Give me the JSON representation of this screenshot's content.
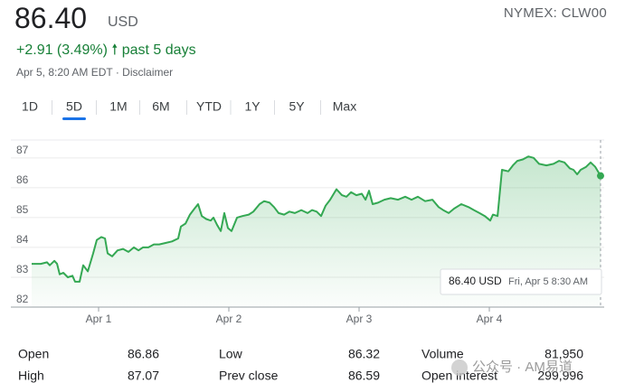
{
  "header": {
    "price": "86.40",
    "currency": "USD",
    "change": "+2.91 (3.49%)",
    "change_arrow": "🠕",
    "period": "past 5 days",
    "timestamp": "Apr 5, 8:20 AM EDT · Disclaimer",
    "symbol": "NYMEX: CLW00"
  },
  "tabs": [
    "1D",
    "5D",
    "1M",
    "6M",
    "YTD",
    "1Y",
    "5Y",
    "Max"
  ],
  "selected_tab": 1,
  "chart_data": {
    "type": "line",
    "x": [
      0.486,
      0.556,
      0.604,
      0.625,
      0.66,
      0.681,
      0.701,
      0.729,
      0.764,
      0.799,
      0.819,
      0.854,
      0.882,
      0.917,
      0.958,
      0.986,
      1.021,
      1.049,
      1.069,
      1.104,
      1.146,
      1.188,
      1.229,
      1.271,
      1.306,
      1.34,
      1.382,
      1.424,
      1.465,
      1.514,
      1.563,
      1.611,
      1.632,
      1.667,
      1.701,
      1.736,
      1.764,
      1.792,
      1.826,
      1.861,
      1.882,
      1.91,
      1.938,
      1.965,
      1.993,
      2.021,
      2.063,
      2.104,
      2.153,
      2.188,
      2.236,
      2.271,
      2.313,
      2.347,
      2.382,
      2.424,
      2.465,
      2.507,
      2.556,
      2.604,
      2.639,
      2.674,
      2.708,
      2.743,
      2.778,
      2.826,
      2.868,
      2.903,
      2.938,
      2.979,
      3.021,
      3.049,
      3.076,
      3.104,
      3.146,
      3.194,
      3.243,
      3.299,
      3.354,
      3.403,
      3.451,
      3.507,
      3.563,
      3.611,
      3.646,
      3.688,
      3.729,
      3.785,
      3.84,
      3.882,
      3.924,
      3.965,
      4.007,
      4.028,
      4.063,
      4.097,
      4.146,
      4.181,
      4.215,
      4.257,
      4.299,
      4.34,
      4.382,
      4.438,
      4.493,
      4.535,
      4.576,
      4.618,
      4.646,
      4.674,
      4.701,
      4.743,
      4.778,
      4.813,
      4.854
    ],
    "series": [
      {
        "color": "#34a853",
        "values": [
          83.45,
          83.45,
          83.5,
          83.4,
          83.55,
          83.45,
          83.1,
          83.15,
          83.0,
          83.05,
          82.85,
          82.85,
          83.4,
          83.2,
          83.8,
          84.25,
          84.35,
          84.3,
          83.8,
          83.7,
          83.9,
          83.95,
          83.85,
          84.0,
          83.9,
          84.0,
          84.0,
          84.1,
          84.1,
          84.15,
          84.2,
          84.3,
          84.7,
          84.8,
          85.1,
          85.3,
          85.45,
          85.05,
          84.95,
          84.9,
          85.0,
          84.75,
          84.55,
          85.15,
          84.65,
          84.55,
          85.0,
          85.05,
          85.1,
          85.2,
          85.45,
          85.55,
          85.5,
          85.35,
          85.15,
          85.1,
          85.2,
          85.15,
          85.25,
          85.15,
          85.25,
          85.2,
          85.05,
          85.4,
          85.6,
          85.95,
          85.75,
          85.7,
          85.85,
          85.75,
          85.8,
          85.6,
          85.9,
          85.45,
          85.5,
          85.6,
          85.65,
          85.6,
          85.7,
          85.6,
          85.7,
          85.55,
          85.6,
          85.35,
          85.25,
          85.15,
          85.3,
          85.45,
          85.35,
          85.25,
          85.15,
          85.05,
          84.9,
          85.1,
          85.05,
          86.6,
          86.55,
          86.75,
          86.9,
          86.95,
          87.05,
          87.0,
          86.8,
          86.75,
          86.8,
          86.9,
          86.85,
          86.65,
          86.6,
          86.45,
          86.6,
          86.7,
          86.85,
          86.7,
          86.4
        ]
      }
    ],
    "xlim": [
      0.486,
      4.868
    ],
    "xticks": [
      {
        "value": 1,
        "label": "Apr 1"
      },
      {
        "value": 2,
        "label": "Apr 2"
      },
      {
        "value": 3,
        "label": "Apr 3"
      },
      {
        "value": 4,
        "label": "Apr 4"
      }
    ],
    "ylim": [
      82,
      87.6
    ],
    "yticks": [
      82,
      83,
      84,
      85,
      86,
      87
    ],
    "grid": true,
    "tooltip": {
      "value": "86.40 USD",
      "time": "Fri, Apr 5 8:30 AM"
    }
  },
  "stats": [
    [
      [
        "Open",
        "86.86"
      ],
      [
        "High",
        "87.07"
      ]
    ],
    [
      [
        "Low",
        "86.32"
      ],
      [
        "Prev close",
        "86.59"
      ]
    ],
    [
      [
        "Volume",
        "81,950"
      ],
      [
        "Open interest",
        "299,996"
      ]
    ]
  ],
  "watermark": "公众号 · AM易道"
}
